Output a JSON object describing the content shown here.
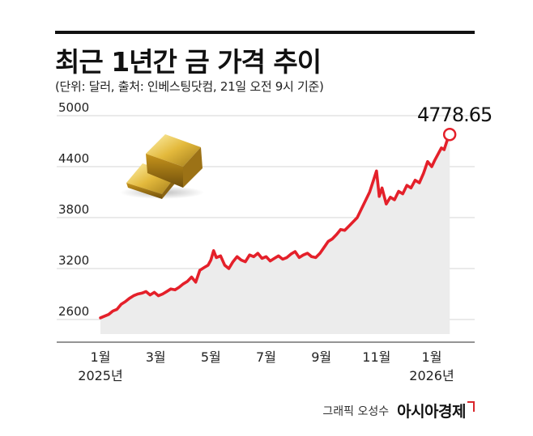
{
  "title": "최근 1년간 금 가격 추이",
  "subtitle": "(단위: 달러, 출처: 인베스팅닷컴, 21일 오전 9시 기준)",
  "credit": "그래픽 오성수",
  "brand": "아시아경제",
  "chart_data": {
    "type": "area",
    "title": "최근 1년간 금 가격 추이",
    "xlabel": "",
    "ylabel": "",
    "ylim": [
      2600,
      5000
    ],
    "yticks": [
      "5000",
      "4400",
      "3800",
      "3200",
      "2600"
    ],
    "xticks": [
      {
        "label": "1월",
        "sub": "2025년",
        "month": 0
      },
      {
        "label": "3월",
        "sub": "",
        "month": 2
      },
      {
        "label": "5월",
        "sub": "",
        "month": 4
      },
      {
        "label": "7월",
        "sub": "",
        "month": 6
      },
      {
        "label": "9월",
        "sub": "",
        "month": 8
      },
      {
        "label": "11월",
        "sub": "",
        "month": 10
      },
      {
        "label": "1월",
        "sub": "2026년",
        "month": 12
      }
    ],
    "last_value_label": "4778.65",
    "series_color": "#e4202a",
    "area_color": "#ececec",
    "series": [
      {
        "name": "",
        "points": [
          [
            0.0,
            2620
          ],
          [
            0.15,
            2640
          ],
          [
            0.3,
            2660
          ],
          [
            0.45,
            2700
          ],
          [
            0.6,
            2720
          ],
          [
            0.75,
            2780
          ],
          [
            0.9,
            2810
          ],
          [
            1.05,
            2850
          ],
          [
            1.2,
            2880
          ],
          [
            1.35,
            2900
          ],
          [
            1.5,
            2910
          ],
          [
            1.65,
            2930
          ],
          [
            1.8,
            2890
          ],
          [
            1.95,
            2920
          ],
          [
            2.1,
            2880
          ],
          [
            2.25,
            2900
          ],
          [
            2.4,
            2930
          ],
          [
            2.55,
            2960
          ],
          [
            2.7,
            2950
          ],
          [
            2.85,
            2980
          ],
          [
            3.0,
            3020
          ],
          [
            3.15,
            3050
          ],
          [
            3.3,
            3100
          ],
          [
            3.45,
            3040
          ],
          [
            3.6,
            3180
          ],
          [
            3.75,
            3210
          ],
          [
            3.9,
            3240
          ],
          [
            4.0,
            3300
          ],
          [
            4.1,
            3410
          ],
          [
            4.2,
            3330
          ],
          [
            4.35,
            3350
          ],
          [
            4.5,
            3240
          ],
          [
            4.65,
            3200
          ],
          [
            4.8,
            3280
          ],
          [
            4.95,
            3340
          ],
          [
            5.1,
            3300
          ],
          [
            5.25,
            3280
          ],
          [
            5.4,
            3360
          ],
          [
            5.55,
            3340
          ],
          [
            5.7,
            3380
          ],
          [
            5.85,
            3320
          ],
          [
            6.0,
            3340
          ],
          [
            6.15,
            3290
          ],
          [
            6.3,
            3320
          ],
          [
            6.45,
            3350
          ],
          [
            6.6,
            3310
          ],
          [
            6.75,
            3330
          ],
          [
            6.9,
            3370
          ],
          [
            7.05,
            3400
          ],
          [
            7.2,
            3330
          ],
          [
            7.35,
            3360
          ],
          [
            7.5,
            3380
          ],
          [
            7.65,
            3340
          ],
          [
            7.8,
            3330
          ],
          [
            7.95,
            3380
          ],
          [
            8.1,
            3450
          ],
          [
            8.25,
            3520
          ],
          [
            8.4,
            3550
          ],
          [
            8.55,
            3600
          ],
          [
            8.7,
            3660
          ],
          [
            8.85,
            3650
          ],
          [
            9.0,
            3700
          ],
          [
            9.15,
            3750
          ],
          [
            9.3,
            3800
          ],
          [
            9.45,
            3900
          ],
          [
            9.6,
            4000
          ],
          [
            9.75,
            4100
          ],
          [
            9.9,
            4250
          ],
          [
            10.0,
            4350
          ],
          [
            10.1,
            4050
          ],
          [
            10.2,
            4150
          ],
          [
            10.35,
            3960
          ],
          [
            10.5,
            4040
          ],
          [
            10.65,
            4010
          ],
          [
            10.8,
            4110
          ],
          [
            10.95,
            4080
          ],
          [
            11.1,
            4180
          ],
          [
            11.25,
            4150
          ],
          [
            11.4,
            4240
          ],
          [
            11.55,
            4210
          ],
          [
            11.7,
            4320
          ],
          [
            11.85,
            4460
          ],
          [
            12.0,
            4400
          ],
          [
            12.1,
            4470
          ],
          [
            12.25,
            4560
          ],
          [
            12.35,
            4620
          ],
          [
            12.45,
            4600
          ],
          [
            12.55,
            4700
          ],
          [
            12.65,
            4778.65
          ]
        ]
      }
    ]
  }
}
